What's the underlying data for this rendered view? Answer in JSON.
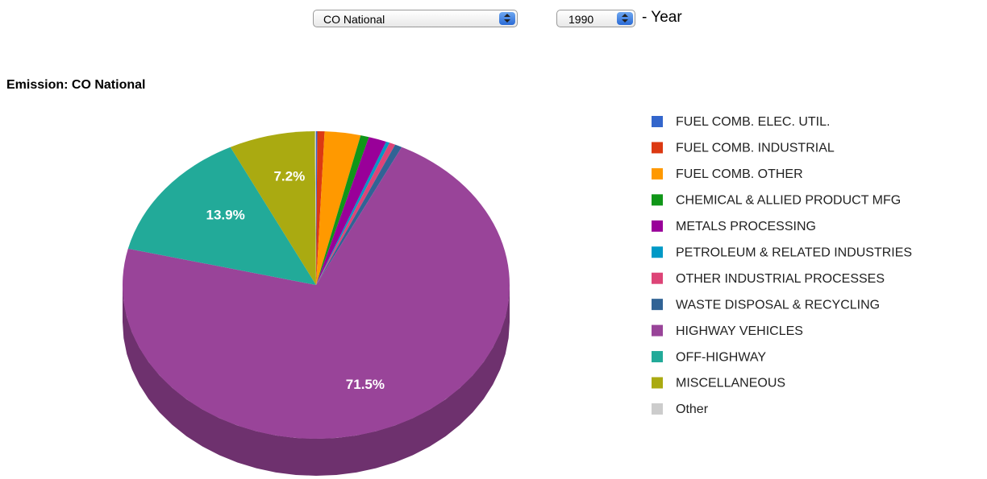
{
  "controls": {
    "pollutant": "CO National",
    "year": "1990",
    "year_suffix": "- Year"
  },
  "chart_data": {
    "type": "pie",
    "title": "Emission: CO National",
    "categories": [
      "FUEL COMB. ELEC. UTIL.",
      "FUEL COMB. INDUSTRIAL",
      "FUEL COMB. OTHER",
      "CHEMICAL & ALLIED PRODUCT MFG",
      "METALS PROCESSING",
      "PETROLEUM & RELATED INDUSTRIES",
      "OTHER INDUSTRIAL PROCESSES",
      "WASTE DISPOSAL & RECYCLING",
      "HIGHWAY VEHICLES",
      "OFF-HIGHWAY",
      "MISCELLANEOUS",
      "Other"
    ],
    "values": [
      0.1,
      0.6,
      3.0,
      0.7,
      1.5,
      0.3,
      0.5,
      0.6,
      71.5,
      13.9,
      7.2,
      0.1
    ],
    "value_labels": [
      null,
      null,
      null,
      null,
      null,
      null,
      null,
      null,
      "71.5%",
      "13.9%",
      "7.2%",
      null
    ],
    "colors": [
      "#3366cc",
      "#dc3912",
      "#ff9900",
      "#109618",
      "#990099",
      "#0099c6",
      "#dd4477",
      "#316395",
      "#994499",
      "#22aa99",
      "#aaaa11",
      "#cccccc"
    ],
    "legend": "right"
  }
}
